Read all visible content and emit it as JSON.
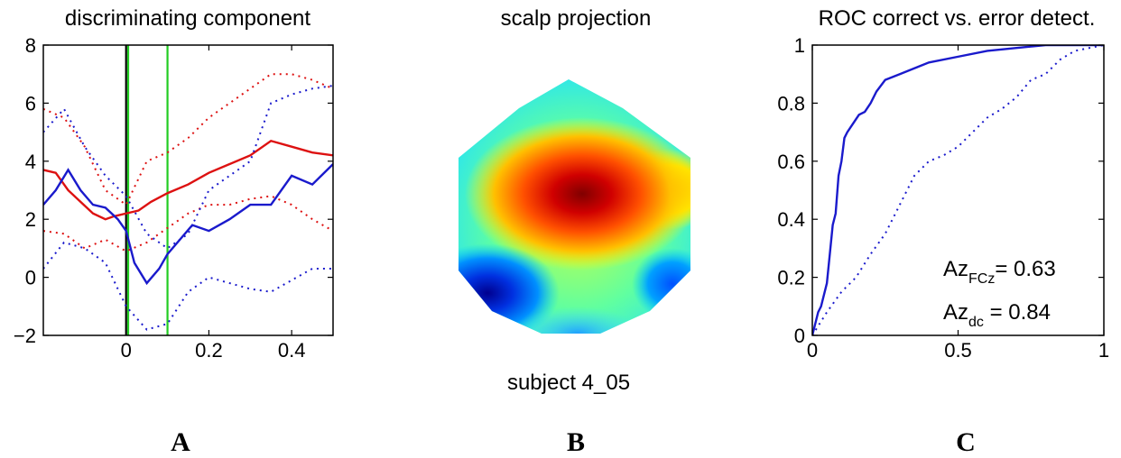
{
  "chart_data": [
    {
      "type": "line",
      "title": "discriminating component",
      "panel_label": "A",
      "xlim": [
        -0.2,
        0.5
      ],
      "ylim": [
        -2,
        8
      ],
      "xticks": [
        0,
        0.2,
        0.4
      ],
      "xtick_labels": [
        "0",
        "0.2",
        "0.4"
      ],
      "yticks": [
        -2,
        0,
        2,
        4,
        6,
        8
      ],
      "ytick_labels": [
        "−2",
        "0",
        "2",
        "4",
        "6",
        "8"
      ],
      "vlines": [
        {
          "x": 0,
          "color": "#000000"
        },
        {
          "x": 0.005,
          "color": "#22cc22"
        },
        {
          "x": 0.1,
          "color": "#22cc22"
        }
      ],
      "series": [
        {
          "color": "#dd1111",
          "style": "solid",
          "x": [
            -0.2,
            -0.17,
            -0.14,
            -0.11,
            -0.08,
            -0.05,
            -0.03,
            0,
            0.03,
            0.06,
            0.1,
            0.15,
            0.2,
            0.25,
            0.3,
            0.35,
            0.4,
            0.45,
            0.5
          ],
          "y": [
            3.7,
            3.6,
            3.0,
            2.6,
            2.2,
            2.0,
            2.1,
            2.2,
            2.3,
            2.6,
            2.9,
            3.2,
            3.6,
            3.9,
            4.2,
            4.7,
            4.5,
            4.3,
            4.2
          ]
        },
        {
          "color": "#dd1111",
          "style": "dotted",
          "x": [
            -0.2,
            -0.15,
            -0.1,
            -0.05,
            0,
            0.05,
            0.1,
            0.15,
            0.2,
            0.25,
            0.3,
            0.35,
            0.4,
            0.45,
            0.5
          ],
          "y": [
            5.8,
            5.5,
            4.5,
            3.0,
            2.5,
            4.0,
            4.3,
            4.8,
            5.5,
            6.0,
            6.5,
            7.0,
            7.0,
            6.8,
            6.5
          ]
        },
        {
          "color": "#dd1111",
          "style": "dotted",
          "x": [
            -0.2,
            -0.15,
            -0.1,
            -0.05,
            0,
            0.05,
            0.1,
            0.15,
            0.2,
            0.25,
            0.3,
            0.35,
            0.4,
            0.45,
            0.5
          ],
          "y": [
            1.6,
            1.5,
            1.0,
            1.3,
            0.9,
            1.2,
            1.7,
            2.2,
            2.5,
            2.5,
            2.7,
            2.8,
            2.5,
            2.0,
            1.6
          ]
        },
        {
          "color": "#1a1acc",
          "style": "solid",
          "x": [
            -0.2,
            -0.17,
            -0.14,
            -0.11,
            -0.08,
            -0.05,
            -0.02,
            0,
            0.02,
            0.05,
            0.08,
            0.1,
            0.13,
            0.16,
            0.2,
            0.25,
            0.3,
            0.35,
            0.4,
            0.45,
            0.5
          ],
          "y": [
            2.5,
            3.0,
            3.7,
            3.0,
            2.5,
            2.4,
            2.0,
            1.6,
            0.5,
            -0.2,
            0.3,
            0.8,
            1.3,
            1.8,
            1.6,
            2.0,
            2.5,
            2.5,
            3.5,
            3.2,
            3.9
          ]
        },
        {
          "color": "#1a1acc",
          "style": "dotted",
          "x": [
            -0.2,
            -0.15,
            -0.1,
            -0.05,
            0,
            0.05,
            0.1,
            0.15,
            0.2,
            0.25,
            0.3,
            0.35,
            0.4,
            0.45,
            0.5
          ],
          "y": [
            5.0,
            5.8,
            4.5,
            3.5,
            2.8,
            1.5,
            1.0,
            1.5,
            3.0,
            3.5,
            4.0,
            6.0,
            6.3,
            6.5,
            6.6
          ]
        },
        {
          "color": "#1a1acc",
          "style": "dotted",
          "x": [
            -0.2,
            -0.15,
            -0.1,
            -0.05,
            0,
            0.05,
            0.1,
            0.15,
            0.2,
            0.25,
            0.3,
            0.35,
            0.4,
            0.45,
            0.5
          ],
          "y": [
            0.3,
            1.2,
            1.0,
            0.5,
            -1.0,
            -1.8,
            -1.6,
            -0.5,
            0.0,
            -0.2,
            -0.4,
            -0.5,
            -0.1,
            0.3,
            0.3
          ]
        }
      ]
    },
    {
      "type": "heatmap",
      "title": "scalp projection",
      "panel_label": "B",
      "caption": "subject 4_05",
      "colormap": [
        "#00008f",
        "#0050ff",
        "#00d0ff",
        "#80ff80",
        "#ffff00",
        "#ff8000",
        "#ff0000",
        "#800000"
      ]
    },
    {
      "type": "line",
      "title": "ROC correct vs. error detect.",
      "panel_label": "C",
      "xlim": [
        0,
        1
      ],
      "ylim": [
        0,
        1
      ],
      "xticks": [
        0,
        0.5,
        1
      ],
      "xtick_labels": [
        "0",
        "0.5",
        "1"
      ],
      "yticks": [
        0,
        0.2,
        0.4,
        0.6,
        0.8,
        1
      ],
      "ytick_labels": [
        "0",
        "0.2",
        "0.4",
        "0.6",
        "0.8",
        "1"
      ],
      "annotations": [
        {
          "main": "Az",
          "sub": "FCz",
          "text": "= 0.63"
        },
        {
          "main": "Az",
          "sub": "dc",
          "text": " = 0.84"
        }
      ],
      "series": [
        {
          "color": "#1a1acc",
          "style": "solid",
          "x": [
            0,
            0.02,
            0.03,
            0.05,
            0.06,
            0.07,
            0.08,
            0.09,
            0.1,
            0.11,
            0.12,
            0.14,
            0.16,
            0.18,
            0.2,
            0.22,
            0.25,
            0.3,
            0.35,
            0.4,
            0.5,
            0.6,
            0.7,
            0.8,
            0.9,
            1.0
          ],
          "y": [
            0,
            0.08,
            0.1,
            0.18,
            0.28,
            0.38,
            0.42,
            0.55,
            0.6,
            0.68,
            0.7,
            0.73,
            0.76,
            0.77,
            0.8,
            0.84,
            0.88,
            0.9,
            0.92,
            0.94,
            0.96,
            0.98,
            0.99,
            1.0,
            1.0,
            1.0
          ]
        },
        {
          "color": "#1a1acc",
          "style": "dotted",
          "x": [
            0,
            0.05,
            0.1,
            0.15,
            0.2,
            0.25,
            0.3,
            0.35,
            0.4,
            0.45,
            0.5,
            0.55,
            0.6,
            0.65,
            0.7,
            0.75,
            0.8,
            0.85,
            0.9,
            1.0
          ],
          "y": [
            0,
            0.08,
            0.15,
            0.2,
            0.28,
            0.35,
            0.45,
            0.55,
            0.6,
            0.62,
            0.65,
            0.7,
            0.75,
            0.78,
            0.82,
            0.88,
            0.9,
            0.95,
            0.98,
            1.0
          ]
        }
      ]
    }
  ]
}
